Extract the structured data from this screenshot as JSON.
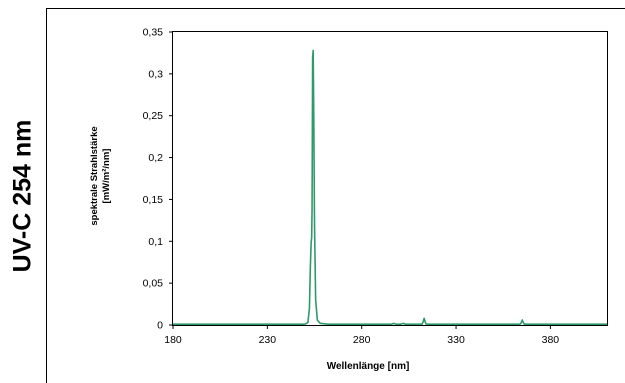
{
  "side_label": "UV-C 254 nm",
  "chart_data": {
    "type": "line",
    "title": "",
    "xlabel": "Wellenlänge [nm]",
    "ylabel_line1": "spektrale Strahlstärke",
    "ylabel_line2": "[mW/m²/nm]",
    "xlim": [
      180,
      410
    ],
    "ylim": [
      0,
      0.35
    ],
    "x_ticks": [
      180,
      230,
      280,
      330,
      380
    ],
    "x_tick_labels": [
      "180",
      "230",
      "280",
      "330",
      "380"
    ],
    "y_ticks": [
      0,
      0.05,
      0.1,
      0.15,
      0.2,
      0.25,
      0.3,
      0.35
    ],
    "y_tick_labels": [
      "0",
      "0,05",
      "0,1",
      "0,15",
      "0,2",
      "0,25",
      "0,3",
      "0,35"
    ],
    "grid": false,
    "legend": "none",
    "series": [
      {
        "color": "#2e9a6a",
        "x": [
          180,
          250,
          251.5,
          252.3,
          252.8,
          253.2,
          253.5,
          253.7,
          254,
          254.3,
          254.6,
          255,
          255.6,
          256.5,
          258,
          262,
          296,
          297,
          298,
          301,
          302,
          303,
          312,
          312.6,
          313.1,
          313.6,
          314.2,
          340,
          364,
          364.6,
          365.1,
          365.6,
          366.2,
          410
        ],
        "y": [
          0.001,
          0.001,
          0.003,
          0.02,
          0.07,
          0.098,
          0.105,
          0.14,
          0.32,
          0.328,
          0.25,
          0.12,
          0.03,
          0.006,
          0.002,
          0.001,
          0.001,
          0.002,
          0.001,
          0.001,
          0.002,
          0.001,
          0.001,
          0.004,
          0.008,
          0.004,
          0.001,
          0.001,
          0.001,
          0.003,
          0.006,
          0.003,
          0.001,
          0.001
        ]
      }
    ]
  }
}
